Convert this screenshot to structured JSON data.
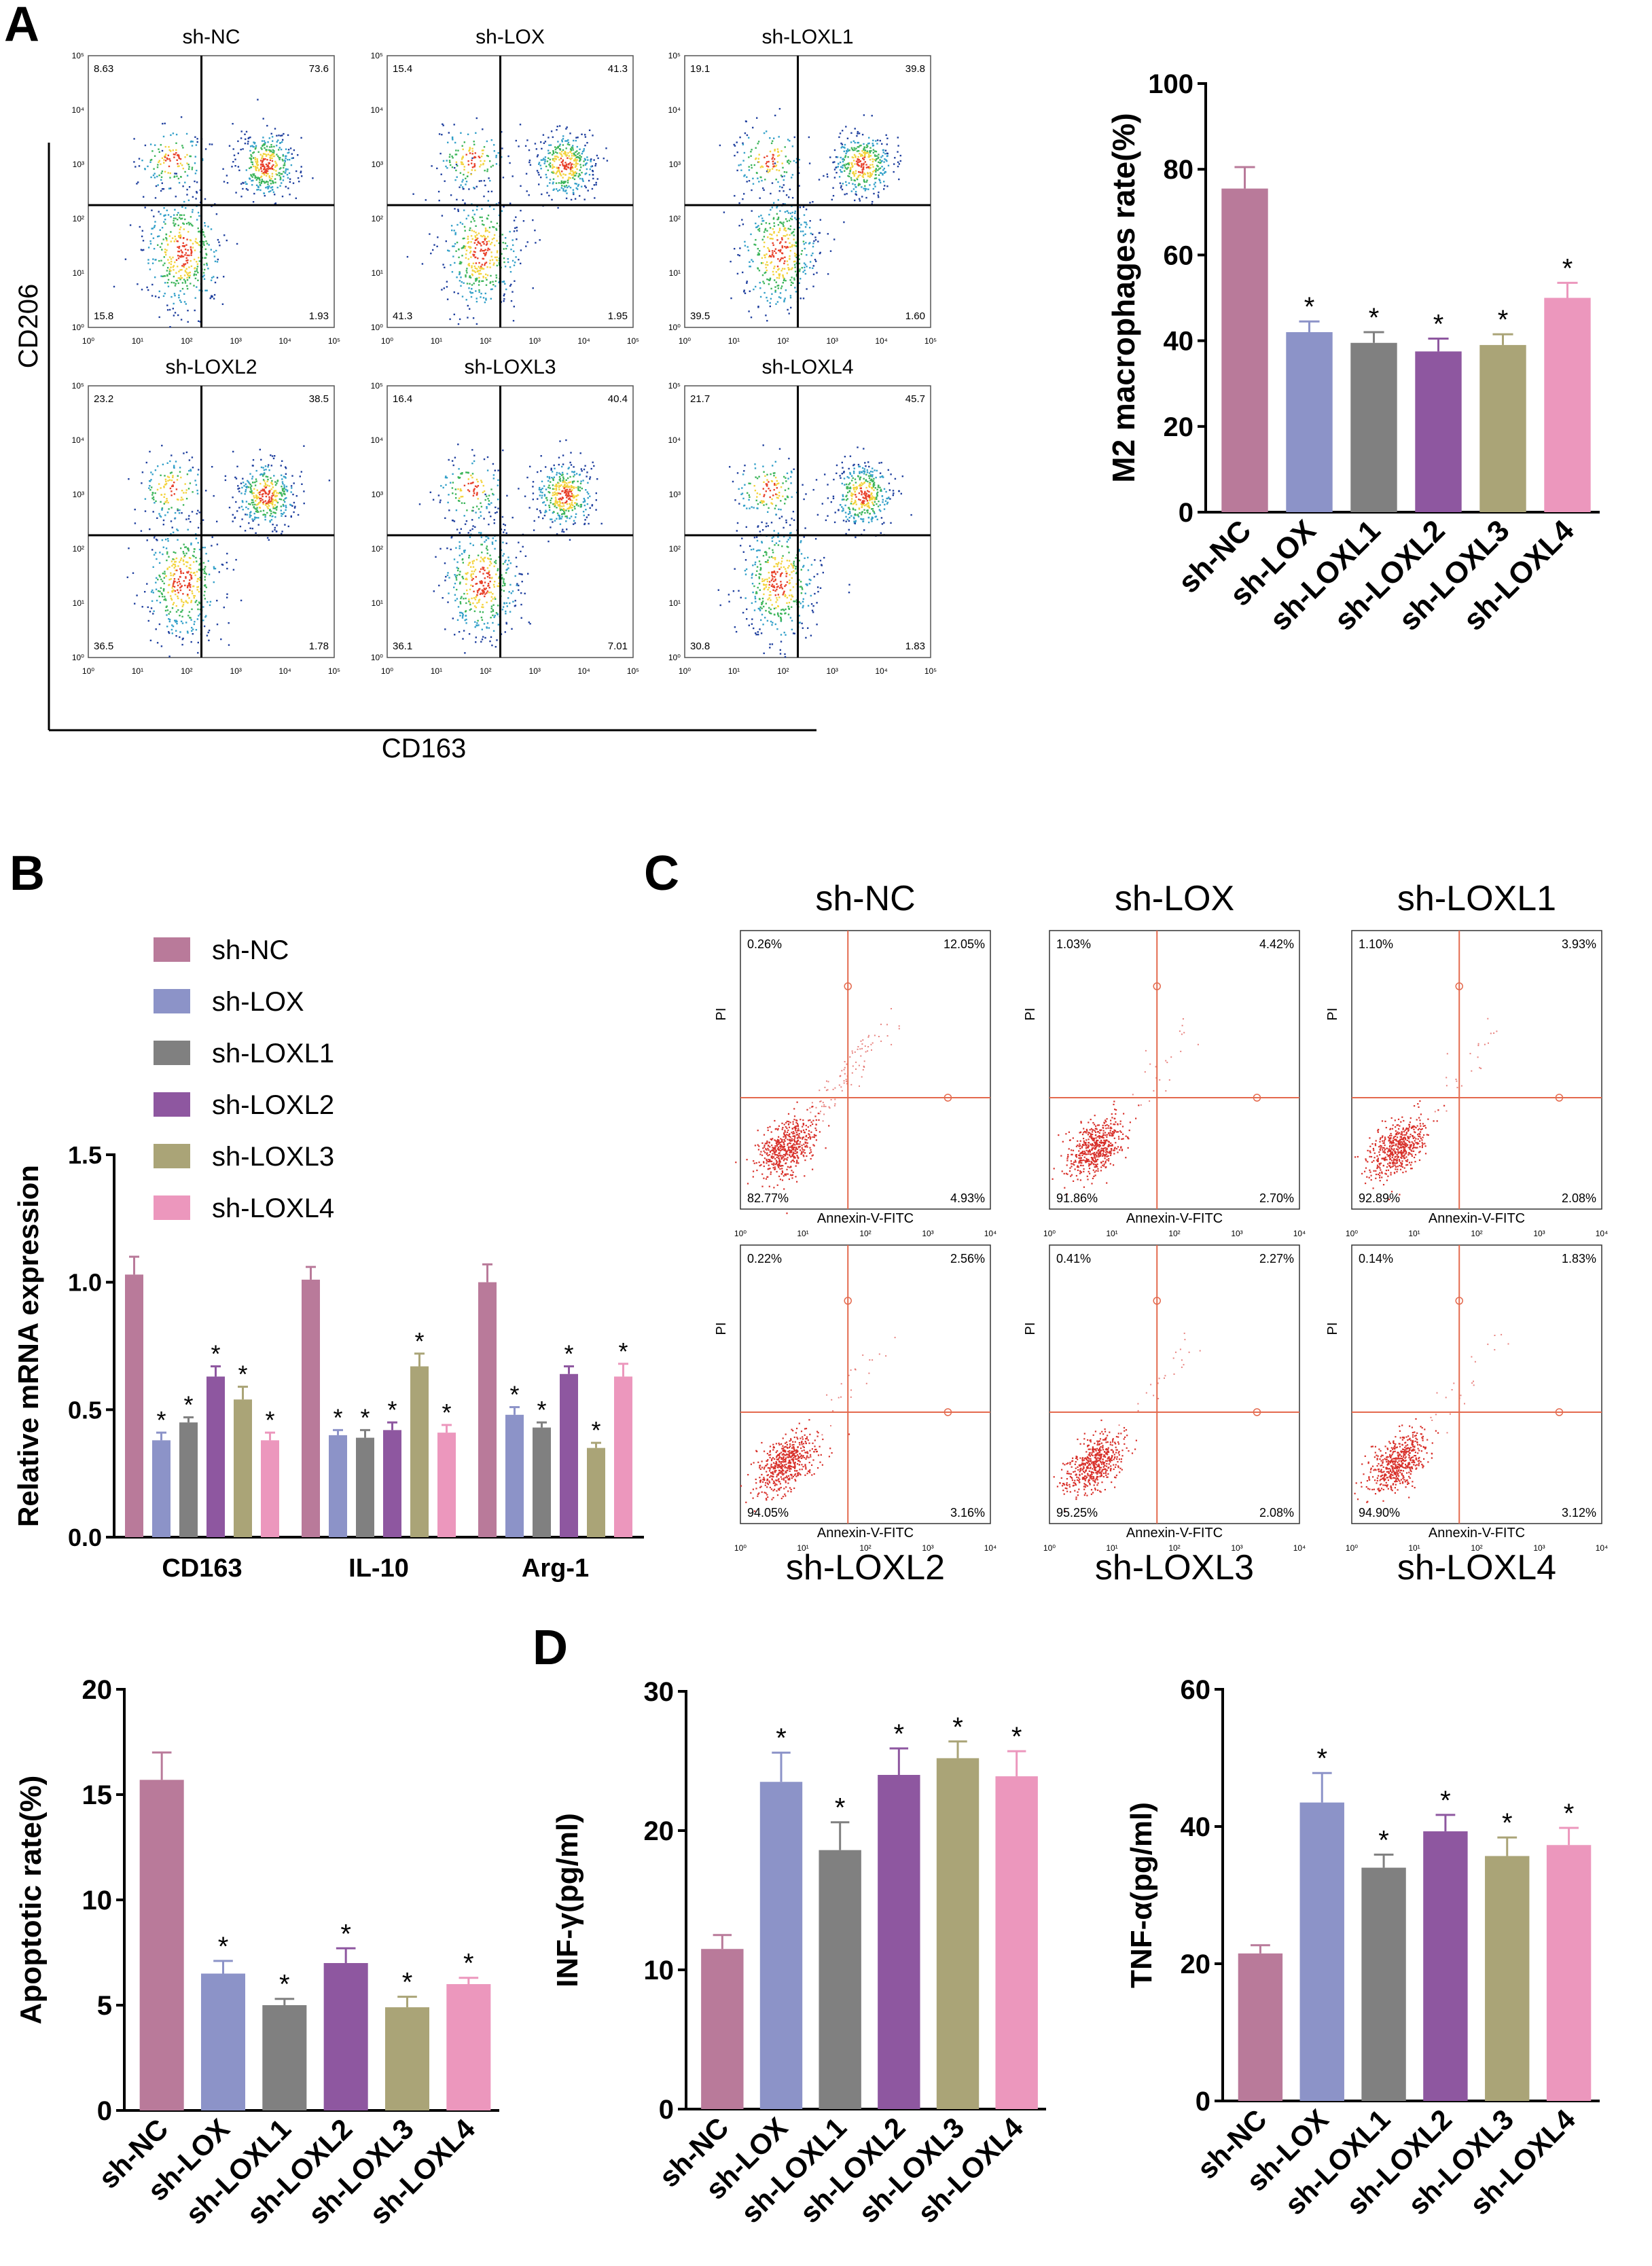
{
  "panels": {
    "A": "A",
    "B": "B",
    "C": "C",
    "D": "D"
  },
  "colors": {
    "sh-NC": "#b97a9a",
    "sh-LOX": "#8c93c8",
    "sh-LOXL1": "#808080",
    "sh-LOXL2": "#8e57a0",
    "sh-LOXL3": "#aaa477",
    "sh-LOXL4": "#ec97bd",
    "gate": "#e46a4e",
    "dot": "#d8302a"
  },
  "flow_A": {
    "xlabel": "CD163",
    "ylabel": "CD206",
    "plots": [
      {
        "name": "sh-NC",
        "ul": "8.63",
        "ur": "73.6",
        "ll": "15.8",
        "lr": "1.93"
      },
      {
        "name": "sh-LOX",
        "ul": "15.4",
        "ur": "41.3",
        "ll": "41.3",
        "lr": "1.95"
      },
      {
        "name": "sh-LOXL1",
        "ul": "19.1",
        "ur": "39.8",
        "ll": "39.5",
        "lr": "1.60"
      },
      {
        "name": "sh-LOXL2",
        "ul": "23.2",
        "ur": "38.5",
        "ll": "36.5",
        "lr": "1.78"
      },
      {
        "name": "sh-LOXL3",
        "ul": "16.4",
        "ur": "40.4",
        "ll": "36.1",
        "lr": "7.01"
      },
      {
        "name": "sh-LOXL4",
        "ul": "21.7",
        "ur": "45.7",
        "ll": "30.8",
        "lr": "1.83"
      }
    ],
    "ticks": [
      "10⁰",
      "10¹",
      "10²",
      "10³",
      "10⁴",
      "10⁵"
    ]
  },
  "flow_C": {
    "xlabel": "Annexin-V-FITC",
    "ylabel": "PI",
    "plots": [
      {
        "name": "sh-NC",
        "ul": "0.26%",
        "ur": "12.05%",
        "ll": "82.77%",
        "lr": "4.93%"
      },
      {
        "name": "sh-LOX",
        "ul": "1.03%",
        "ur": "4.42%",
        "ll": "91.86%",
        "lr": "2.70%"
      },
      {
        "name": "sh-LOXL1",
        "ul": "1.10%",
        "ur": "3.93%",
        "ll": "92.89%",
        "lr": "2.08%"
      },
      {
        "name": "sh-LOXL2",
        "ul": "0.22%",
        "ur": "2.56%",
        "ll": "94.05%",
        "lr": "3.16%"
      },
      {
        "name": "sh-LOXL3",
        "ul": "0.41%",
        "ur": "2.27%",
        "ll": "95.25%",
        "lr": "2.08%"
      },
      {
        "name": "sh-LOXL4",
        "ul": "0.14%",
        "ur": "1.83%",
        "ll": "94.90%",
        "lr": "3.12%"
      }
    ],
    "ticks": [
      "10⁰",
      "10¹",
      "10²",
      "10³",
      "10⁴"
    ]
  },
  "chart_data": [
    {
      "id": "A-bar",
      "type": "bar",
      "ylabel": "M2 macrophages rate(%)",
      "categories": [
        "sh-NC",
        "sh-LOX",
        "sh-LOXL1",
        "sh-LOXL2",
        "sh-LOXL3",
        "sh-LOXL4"
      ],
      "values": [
        75.5,
        42,
        39.5,
        37.5,
        39,
        50
      ],
      "errors": [
        5,
        2.5,
        2.5,
        3,
        2.5,
        3.5
      ],
      "sig": [
        false,
        true,
        true,
        true,
        true,
        true
      ],
      "ylim": [
        0,
        100
      ],
      "yticks": [
        0,
        20,
        40,
        60,
        80,
        100
      ]
    },
    {
      "id": "B-grouped",
      "type": "bar",
      "ylabel": "Relative mRNA expression",
      "categories": [
        "CD163",
        "IL-10",
        "Arg-1"
      ],
      "series": [
        {
          "name": "sh-NC",
          "values": [
            1.03,
            1.01,
            1.0
          ],
          "errors": [
            0.07,
            0.05,
            0.07
          ],
          "sig": [
            false,
            false,
            false
          ]
        },
        {
          "name": "sh-LOX",
          "values": [
            0.38,
            0.4,
            0.48
          ],
          "errors": [
            0.03,
            0.02,
            0.03
          ],
          "sig": [
            true,
            true,
            true
          ]
        },
        {
          "name": "sh-LOXL1",
          "values": [
            0.45,
            0.39,
            0.43
          ],
          "errors": [
            0.02,
            0.03,
            0.02
          ],
          "sig": [
            true,
            true,
            true
          ]
        },
        {
          "name": "sh-LOXL2",
          "values": [
            0.63,
            0.42,
            0.64
          ],
          "errors": [
            0.04,
            0.03,
            0.03
          ],
          "sig": [
            true,
            true,
            true
          ]
        },
        {
          "name": "sh-LOXL3",
          "values": [
            0.54,
            0.67,
            0.35
          ],
          "errors": [
            0.05,
            0.05,
            0.02
          ],
          "sig": [
            true,
            true,
            true
          ]
        },
        {
          "name": "sh-LOXL4",
          "values": [
            0.38,
            0.41,
            0.63
          ],
          "errors": [
            0.03,
            0.03,
            0.05
          ],
          "sig": [
            true,
            true,
            true
          ]
        }
      ],
      "ylim": [
        0,
        1.5
      ],
      "yticks": [
        "0.0",
        "0.5",
        "1.0",
        "1.5"
      ]
    },
    {
      "id": "C-bar",
      "type": "bar",
      "ylabel": "Apoptotic rate(%)",
      "categories": [
        "sh-NC",
        "sh-LOX",
        "sh-LOXL1",
        "sh-LOXL2",
        "sh-LOXL3",
        "sh-LOXL4"
      ],
      "values": [
        15.7,
        6.5,
        5.0,
        7.0,
        4.9,
        6.0
      ],
      "errors": [
        1.3,
        0.6,
        0.3,
        0.7,
        0.5,
        0.3
      ],
      "sig": [
        false,
        true,
        true,
        true,
        true,
        true
      ],
      "ylim": [
        0,
        20
      ],
      "yticks": [
        0,
        5,
        10,
        15,
        20
      ]
    },
    {
      "id": "D-inf",
      "type": "bar",
      "ylabel": "INF-γ(pg/ml)",
      "categories": [
        "sh-NC",
        "sh-LOX",
        "sh-LOXL1",
        "sh-LOXL2",
        "sh-LOXL3",
        "sh-LOXL4"
      ],
      "values": [
        11.5,
        23.5,
        18.6,
        24.0,
        25.2,
        23.9
      ],
      "errors": [
        1.0,
        2.1,
        2.0,
        1.9,
        1.2,
        1.8
      ],
      "sig": [
        false,
        true,
        true,
        true,
        true,
        true
      ],
      "ylim": [
        0,
        30
      ],
      "yticks": [
        0,
        10,
        20,
        30
      ]
    },
    {
      "id": "D-tnf",
      "type": "bar",
      "ylabel": "TNF-α(pg/ml)",
      "categories": [
        "sh-NC",
        "sh-LOX",
        "sh-LOXL1",
        "sh-LOXL2",
        "sh-LOXL3",
        "sh-LOXL4"
      ],
      "values": [
        21.5,
        43.5,
        34.0,
        39.3,
        35.7,
        37.3
      ],
      "errors": [
        1.2,
        4.3,
        1.9,
        2.4,
        2.7,
        2.5
      ],
      "sig": [
        false,
        true,
        true,
        true,
        true,
        true
      ],
      "ylim": [
        0,
        60
      ],
      "yticks": [
        0,
        20,
        40,
        60
      ]
    }
  ]
}
